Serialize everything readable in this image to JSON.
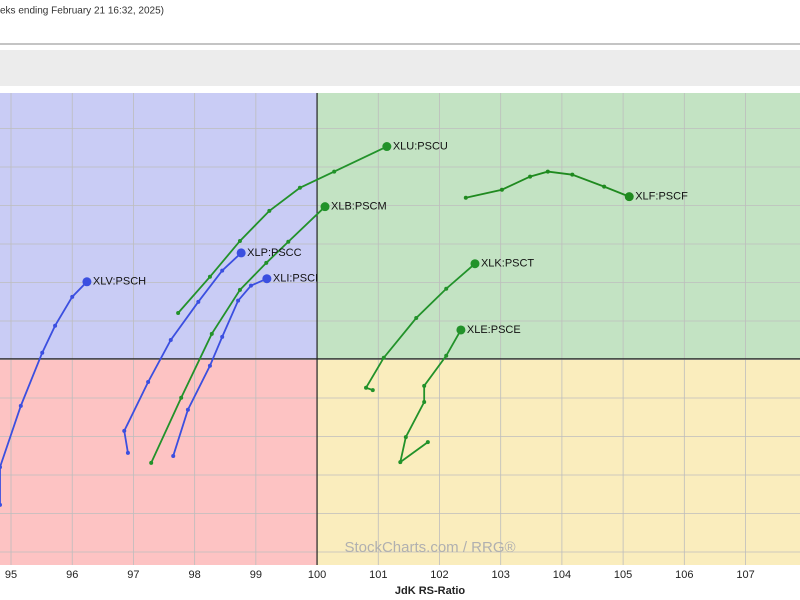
{
  "chart_data": {
    "type": "rrg",
    "subtitle": "eks ending February 21 16:32, 2025)",
    "x_label": "JdK RS-Ratio",
    "watermark": "StockCharts.com / RRG®",
    "xlim": [
      94.82,
      107.89
    ],
    "ylim": [
      94.65,
      106.9
    ],
    "x_center": 100,
    "y_center": 100,
    "xticks": [
      95,
      96,
      97,
      98,
      99,
      100,
      101,
      102,
      103,
      104,
      105,
      106,
      107
    ],
    "quadrant_colors": {
      "top_left": "#c9ccf5",
      "top_right": "#c3e3c3",
      "bottom_left": "#fdc3c3",
      "bottom_right": "#faedbd"
    },
    "series": [
      {
        "name": "XLU:PSCU",
        "color": "#22922a",
        "x": [
          97.73,
          98.25,
          98.74,
          99.22,
          99.72,
          100.28,
          101.14
        ],
        "values": [
          101.19,
          102.13,
          103.06,
          103.84,
          104.44,
          104.86,
          105.51
        ]
      },
      {
        "name": "XLB:PSCM",
        "color": "#22922a",
        "x": [
          97.29,
          97.78,
          98.28,
          98.74,
          99.17,
          99.53,
          100.13
        ],
        "values": [
          97.3,
          98.99,
          100.65,
          101.79,
          102.49,
          103.04,
          103.95
        ]
      },
      {
        "name": "XLP:PSCC",
        "color": "#3b4fe0",
        "x": [
          96.91,
          96.85,
          97.24,
          97.61,
          98.06,
          98.45,
          98.76
        ],
        "values": [
          97.56,
          98.13,
          99.4,
          100.49,
          101.48,
          102.29,
          102.75
        ]
      },
      {
        "name": "XLI:PSCI",
        "color": "#3b4fe0",
        "x": [
          97.65,
          97.89,
          98.25,
          98.45,
          98.71,
          98.92,
          99.18
        ],
        "values": [
          97.48,
          98.68,
          99.82,
          100.57,
          101.51,
          101.9,
          102.08
        ]
      },
      {
        "name": "XLV:PSCH",
        "color": "#3b4fe0",
        "x": [
          94.82,
          94.82,
          95.16,
          95.51,
          95.72,
          96.0,
          96.24
        ],
        "values": [
          96.21,
          97.19,
          98.78,
          100.16,
          100.86,
          101.61,
          102.0
        ]
      },
      {
        "name": "XLF:PSCF",
        "color": "#1f8a1f",
        "x": [
          102.43,
          103.02,
          103.48,
          103.77,
          104.17,
          104.69,
          105.1
        ],
        "values": [
          104.18,
          104.39,
          104.73,
          104.86,
          104.78,
          104.47,
          104.21
        ]
      },
      {
        "name": "XLK:PSCT",
        "color": "#22922a",
        "x": [
          100.91,
          100.8,
          101.09,
          101.62,
          102.11,
          102.58
        ],
        "values": [
          99.19,
          99.25,
          100.03,
          101.06,
          101.82,
          102.47
        ]
      },
      {
        "name": "XLE:PSCE",
        "color": "#22922a",
        "x": [
          101.81,
          101.36,
          101.45,
          101.75,
          101.75,
          102.11,
          102.35
        ],
        "values": [
          97.84,
          97.32,
          97.97,
          98.88,
          99.3,
          100.08,
          100.75
        ]
      }
    ]
  }
}
